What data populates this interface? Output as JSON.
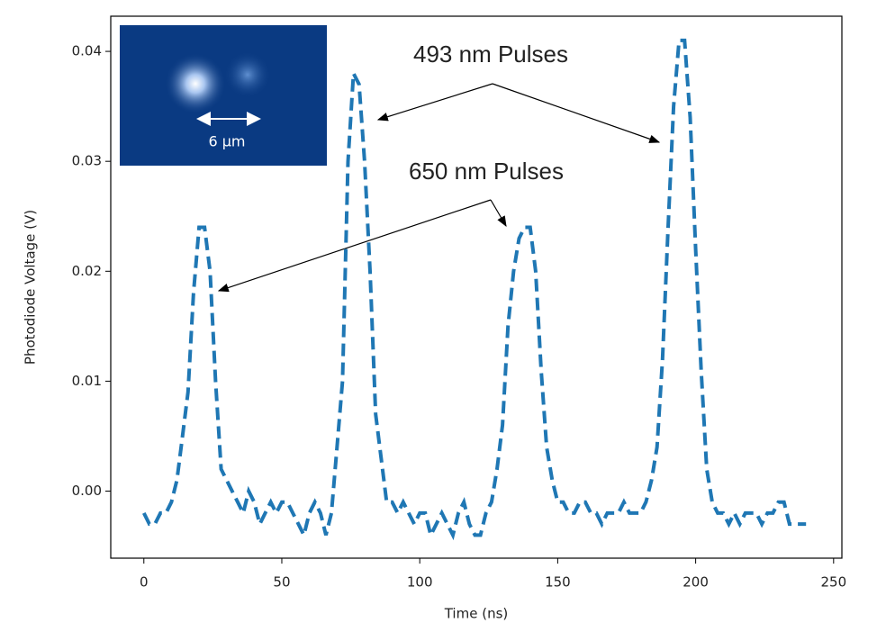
{
  "chart_data": {
    "type": "line",
    "xlabel": "Time (ns)",
    "ylabel": "Photodiode Voltage (V)",
    "x": [
      0,
      2,
      4,
      6,
      8,
      10,
      12,
      14,
      16,
      18,
      20,
      22,
      24,
      26,
      28,
      30,
      32,
      34,
      36,
      38,
      40,
      42,
      44,
      46,
      48,
      50,
      52,
      54,
      56,
      58,
      60,
      62,
      64,
      66,
      68,
      70,
      72,
      74,
      76,
      78,
      80,
      82,
      84,
      86,
      88,
      90,
      92,
      94,
      96,
      98,
      100,
      102,
      104,
      106,
      108,
      110,
      112,
      114,
      116,
      118,
      120,
      122,
      124,
      126,
      128,
      130,
      132,
      134,
      136,
      138,
      140,
      142,
      144,
      146,
      148,
      150,
      152,
      154,
      156,
      158,
      160,
      162,
      164,
      166,
      168,
      170,
      172,
      174,
      176,
      178,
      180,
      182,
      184,
      186,
      188,
      190,
      192,
      194,
      196,
      198,
      200,
      202,
      204,
      206,
      208,
      210,
      212,
      214,
      216,
      218,
      220,
      222,
      224,
      226,
      228,
      230,
      232,
      234,
      236,
      238,
      240
    ],
    "values": [
      -0.002,
      -0.003,
      -0.003,
      -0.002,
      -0.002,
      -0.001,
      0.001,
      0.005,
      0.009,
      0.018,
      0.024,
      0.024,
      0.02,
      0.01,
      0.002,
      0.001,
      0.0,
      -0.001,
      -0.002,
      0.0,
      -0.001,
      -0.003,
      -0.002,
      -0.001,
      -0.002,
      -0.001,
      -0.001,
      -0.002,
      -0.003,
      -0.004,
      -0.002,
      -0.001,
      -0.002,
      -0.004,
      -0.002,
      0.004,
      0.01,
      0.03,
      0.038,
      0.037,
      0.03,
      0.02,
      0.007,
      0.003,
      -0.001,
      -0.001,
      -0.002,
      -0.001,
      -0.002,
      -0.003,
      -0.002,
      -0.002,
      -0.004,
      -0.003,
      -0.002,
      -0.003,
      -0.004,
      -0.002,
      -0.001,
      -0.003,
      -0.004,
      -0.004,
      -0.002,
      -0.001,
      0.002,
      0.006,
      0.015,
      0.02,
      0.023,
      0.024,
      0.024,
      0.02,
      0.011,
      0.004,
      0.001,
      -0.001,
      -0.001,
      -0.002,
      -0.002,
      -0.001,
      -0.001,
      -0.002,
      -0.002,
      -0.003,
      -0.002,
      -0.002,
      -0.002,
      -0.001,
      -0.002,
      -0.002,
      -0.002,
      -0.001,
      0.001,
      0.004,
      0.012,
      0.024,
      0.035,
      0.041,
      0.041,
      0.034,
      0.022,
      0.011,
      0.002,
      -0.001,
      -0.002,
      -0.002,
      -0.003,
      -0.002,
      -0.003,
      -0.002,
      -0.002,
      -0.002,
      -0.003,
      -0.002,
      -0.002,
      -0.001,
      -0.001,
      -0.003,
      -0.003,
      -0.003,
      -0.003
    ],
    "color": "#1f77b4",
    "line_style": "dashed",
    "xlim": [
      -12,
      253
    ],
    "xticks": [
      0,
      50,
      100,
      150,
      200,
      250
    ],
    "ylim": [
      -0.0061,
      0.0432
    ],
    "yticks": [
      {
        "value": 0,
        "label": "0.00"
      },
      0.01,
      0.02,
      0.03,
      0.04
    ],
    "annotations": [
      "493 nm Pulses",
      "650 nm Pulses"
    ],
    "inset_label": "6 µm"
  }
}
